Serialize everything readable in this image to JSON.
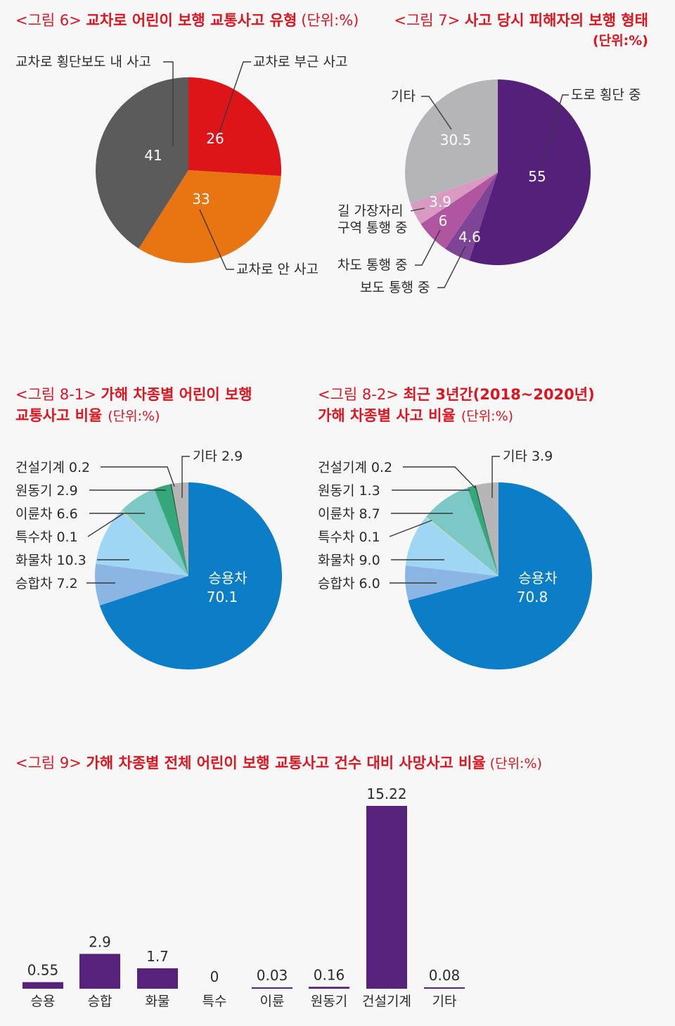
{
  "chart_data": [
    {
      "id": "fig6",
      "type": "pie",
      "title_prefix": "<그림 6>",
      "title": "교차로 어린이 보행 교통사고 유형",
      "unit": "(단위:%)",
      "slices": [
        {
          "label": "교차로 부근 사고",
          "value": 26,
          "color": "#dd1519"
        },
        {
          "label": "교차로 안 사고",
          "value": 33,
          "color": "#e87511"
        },
        {
          "label": "교차로 횡단보도 내 사고",
          "value": 41,
          "color": "#5b5b5b"
        }
      ]
    },
    {
      "id": "fig7",
      "type": "pie",
      "title_prefix": "<그림 7>",
      "title": "사고 당시 피해자의 보행 형태",
      "unit": "(단위:%)",
      "slices": [
        {
          "label": "도로 횡단 중",
          "value": 55,
          "color": "#54207a"
        },
        {
          "label": "보도 통행 중",
          "value": 4.6,
          "color": "#7e4596"
        },
        {
          "label": "차도 통행 중",
          "value": 6,
          "color": "#b055a0"
        },
        {
          "label": "길 가장자리 구역 통행 중",
          "label_lines": [
            "길 가장자리",
            "구역 통행 중"
          ],
          "value": 3.9,
          "color": "#d89ac0"
        },
        {
          "label": "기타",
          "value": 30.5,
          "color": "#b5b5b7"
        }
      ]
    },
    {
      "id": "fig8-1",
      "type": "pie",
      "title_prefix": "<그림 8-1>",
      "title_lines": [
        "가해 차종별 어린이 보행",
        "교통사고 비율"
      ],
      "unit": "(단위:%)",
      "slices": [
        {
          "label": "승용차",
          "value": 70.1,
          "color": "#0b7ec7"
        },
        {
          "label": "승합차",
          "value": 7.2,
          "color": "#8bb6e3"
        },
        {
          "label": "화물차",
          "value": 10.3,
          "color": "#9fd6f4"
        },
        {
          "label": "특수차",
          "value": 0.1,
          "color": "#f2ec5a"
        },
        {
          "label": "이륜차",
          "value": 6.6,
          "color": "#7cc8c7"
        },
        {
          "label": "원동기",
          "value": 2.9,
          "color": "#36a77a"
        },
        {
          "label": "건설기계",
          "value": 0.2,
          "color": "#1d4f36"
        },
        {
          "label": "기타",
          "value": 2.9,
          "color": "#b5b5b7"
        }
      ]
    },
    {
      "id": "fig8-2",
      "type": "pie",
      "title_prefix": "<그림 8-2>",
      "title_lines": [
        "최근 3년간(2018~2020년)",
        "가해 차종별 사고 비율"
      ],
      "unit": "(단위:%)",
      "slices": [
        {
          "label": "승용차",
          "value": 70.8,
          "color": "#0b7ec7"
        },
        {
          "label": "승합차",
          "value": 6.0,
          "color": "#8bb6e3"
        },
        {
          "label": "화물차",
          "value": 9.0,
          "color": "#9fd6f4"
        },
        {
          "label": "특수차",
          "value": 0.1,
          "color": "#f2ec5a"
        },
        {
          "label": "이륜차",
          "value": 8.7,
          "color": "#7cc8c7"
        },
        {
          "label": "원동기",
          "value": 1.3,
          "color": "#36a77a"
        },
        {
          "label": "건설기계",
          "value": 0.2,
          "color": "#1d4f36"
        },
        {
          "label": "기타",
          "value": 3.9,
          "color": "#b5b5b7"
        }
      ]
    },
    {
      "id": "fig9",
      "type": "bar",
      "title_prefix": "<그림 9>",
      "title": "가해 차종별 전체 어린이 보행 교통사고 건수 대비 사망사고 비율",
      "unit": "(단위:%)",
      "categories": [
        "승용",
        "승합",
        "화물",
        "특수",
        "이륜",
        "원동기",
        "건설기계",
        "기타"
      ],
      "values": [
        0.55,
        2.9,
        1.7,
        0,
        0.03,
        0.16,
        15.22,
        0.08
      ],
      "value_labels": [
        "0.55",
        "2.9",
        "1.7",
        "0",
        "0.03",
        "0.16",
        "15.22",
        "0.08"
      ],
      "color": "#56227c"
    }
  ]
}
